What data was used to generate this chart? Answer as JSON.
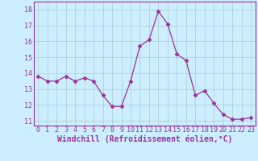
{
  "x": [
    0,
    1,
    2,
    3,
    4,
    5,
    6,
    7,
    8,
    9,
    10,
    11,
    12,
    13,
    14,
    15,
    16,
    17,
    18,
    19,
    20,
    21,
    22,
    23
  ],
  "y": [
    13.8,
    13.5,
    13.5,
    13.8,
    13.5,
    13.7,
    13.5,
    12.6,
    11.9,
    11.9,
    13.5,
    15.7,
    16.1,
    17.9,
    17.1,
    15.2,
    14.8,
    12.6,
    12.9,
    12.1,
    11.4,
    11.1,
    11.1,
    11.2
  ],
  "line_color": "#993399",
  "marker": "D",
  "marker_size": 2.5,
  "bg_color": "#cceeff",
  "grid_color": "#aacccc",
  "xlabel": "Windchill (Refroidissement éolien,°C)",
  "xlabel_color": "#993399",
  "tick_color": "#993399",
  "ylim": [
    10.7,
    18.5
  ],
  "xlim": [
    -0.5,
    23.5
  ],
  "yticks": [
    11,
    12,
    13,
    14,
    15,
    16,
    17,
    18
  ],
  "xticks": [
    0,
    1,
    2,
    3,
    4,
    5,
    6,
    7,
    8,
    9,
    10,
    11,
    12,
    13,
    14,
    15,
    16,
    17,
    18,
    19,
    20,
    21,
    22,
    23
  ],
  "xtick_labels": [
    "0",
    "1",
    "2",
    "3",
    "4",
    "5",
    "6",
    "7",
    "8",
    "9",
    "10",
    "11",
    "12",
    "13",
    "14",
    "15",
    "16",
    "17",
    "18",
    "19",
    "20",
    "21",
    "22",
    "23"
  ],
  "ytick_labels": [
    "11",
    "12",
    "13",
    "14",
    "15",
    "16",
    "17",
    "18"
  ],
  "font_size": 6.0,
  "label_font_size": 7.0
}
